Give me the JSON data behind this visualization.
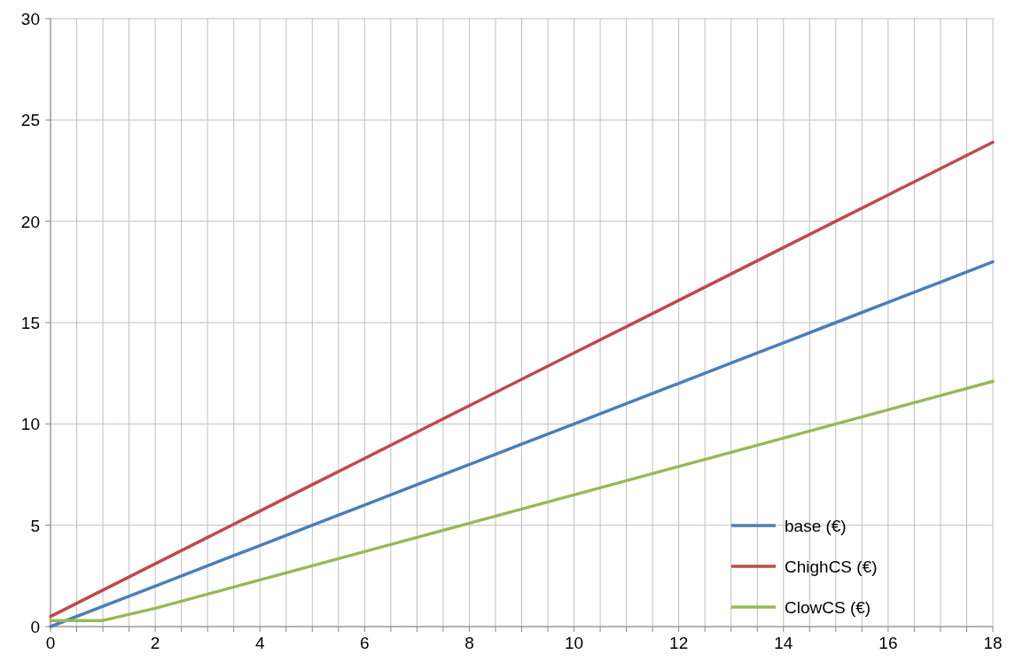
{
  "chart_data": {
    "type": "line",
    "x": [
      0,
      1,
      2,
      3,
      4,
      5,
      6,
      7,
      8,
      9,
      10,
      11,
      12,
      13,
      14,
      15,
      16,
      17,
      18
    ],
    "series": [
      {
        "name": "base (€)",
        "color": "#4a7ebb",
        "values": [
          0,
          1,
          2,
          3,
          4,
          5,
          6,
          7,
          8,
          9,
          10,
          11,
          12,
          13,
          14,
          15,
          16,
          17,
          18
        ]
      },
      {
        "name": "ChighCS (€)",
        "color": "#be4b48",
        "values": [
          0.5,
          1.8,
          3.1,
          4.4,
          5.7,
          7.0,
          8.3,
          9.6,
          10.9,
          12.2,
          13.5,
          14.8,
          16.1,
          17.4,
          18.7,
          20.0,
          21.3,
          22.6,
          23.9
        ]
      },
      {
        "name": "ClowCS (€)",
        "color": "#98b954",
        "values": [
          0.3,
          0.3,
          0.9,
          1.6,
          2.3,
          3.0,
          3.7,
          4.4,
          5.1,
          5.8,
          6.5,
          7.2,
          7.9,
          8.6,
          9.3,
          10.0,
          10.7,
          11.4,
          12.1
        ]
      }
    ],
    "xlim": [
      0,
      18
    ],
    "xticks": [
      0,
      {
        "value": 0.5,
        "label": null
      },
      {
        "value": 1,
        "label": null
      },
      {
        "value": 1.5,
        "label": null
      },
      2,
      {
        "value": 2.5,
        "label": null
      },
      {
        "value": 3,
        "label": null
      },
      {
        "value": 3.5,
        "label": null
      },
      4,
      {
        "value": 4.5,
        "label": null
      },
      {
        "value": 5,
        "label": null
      },
      {
        "value": 5.5,
        "label": null
      },
      6,
      {
        "value": 6.5,
        "label": null
      },
      {
        "value": 7,
        "label": null
      },
      {
        "value": 7.5,
        "label": null
      },
      8,
      {
        "value": 8.5,
        "label": null
      },
      {
        "value": 9,
        "label": null
      },
      {
        "value": 9.5,
        "label": null
      },
      10,
      {
        "value": 10.5,
        "label": null
      },
      {
        "value": 11,
        "label": null
      },
      {
        "value": 11.5,
        "label": null
      },
      12,
      {
        "value": 12.5,
        "label": null
      },
      {
        "value": 13,
        "label": null
      },
      {
        "value": 13.5,
        "label": null
      },
      14,
      {
        "value": 14.5,
        "label": null
      },
      {
        "value": 15,
        "label": null
      },
      {
        "value": 15.5,
        "label": null
      },
      16,
      {
        "value": 16.5,
        "label": null
      },
      {
        "value": 17,
        "label": null
      },
      {
        "value": 17.5,
        "label": null
      },
      18
    ],
    "ylim": [
      0,
      30
    ],
    "yticks": [
      0,
      5,
      10,
      15,
      20,
      25,
      30
    ],
    "grid": true,
    "legend": "bottom right",
    "marker": "none",
    "line_style": "solid"
  }
}
